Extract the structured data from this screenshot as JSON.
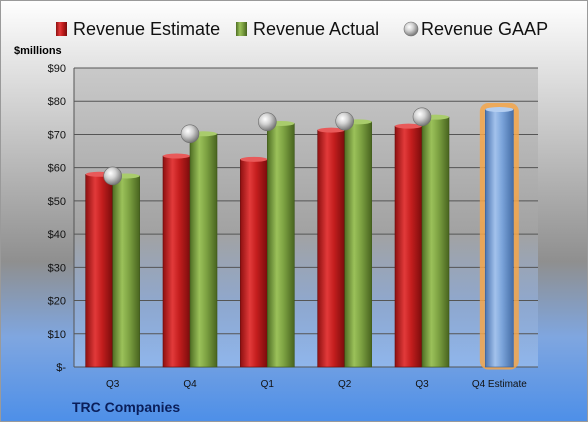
{
  "chart_data": {
    "type": "bar",
    "title": "",
    "company": "TRC Companies",
    "ylabel": "$millions",
    "ylim": [
      0,
      90
    ],
    "y_ticks": [
      0,
      10,
      20,
      30,
      40,
      50,
      60,
      70,
      80,
      90
    ],
    "y_tick_labels": [
      "$-",
      "$10",
      "$20",
      "$30",
      "$40",
      "$50",
      "$60",
      "$70",
      "$80",
      "$90"
    ],
    "categories": [
      "Q3",
      "Q4",
      "Q1",
      "Q2",
      "Q3",
      "Q4 Estimate"
    ],
    "grid": true,
    "legend_position": "top",
    "series": [
      {
        "name": "Revenue Estimate",
        "kind": "bar",
        "color": "#D42A2A",
        "values": [
          58,
          63.5,
          62.5,
          71.3,
          72.5,
          null
        ]
      },
      {
        "name": "Revenue Actual",
        "kind": "bar",
        "color": "#7EA343",
        "values": [
          57.5,
          70.2,
          73.3,
          73.8,
          75.2,
          null
        ]
      },
      {
        "name": "Revenue GAAP",
        "kind": "marker",
        "color": "#B9B9B9",
        "values": [
          57.5,
          70.2,
          73.8,
          74.0,
          75.3,
          null
        ]
      },
      {
        "name": "",
        "kind": "bar",
        "color": "#7BA4DA",
        "highlight": "#F5A64A",
        "values": [
          null,
          null,
          null,
          null,
          null,
          77.5
        ]
      }
    ]
  }
}
